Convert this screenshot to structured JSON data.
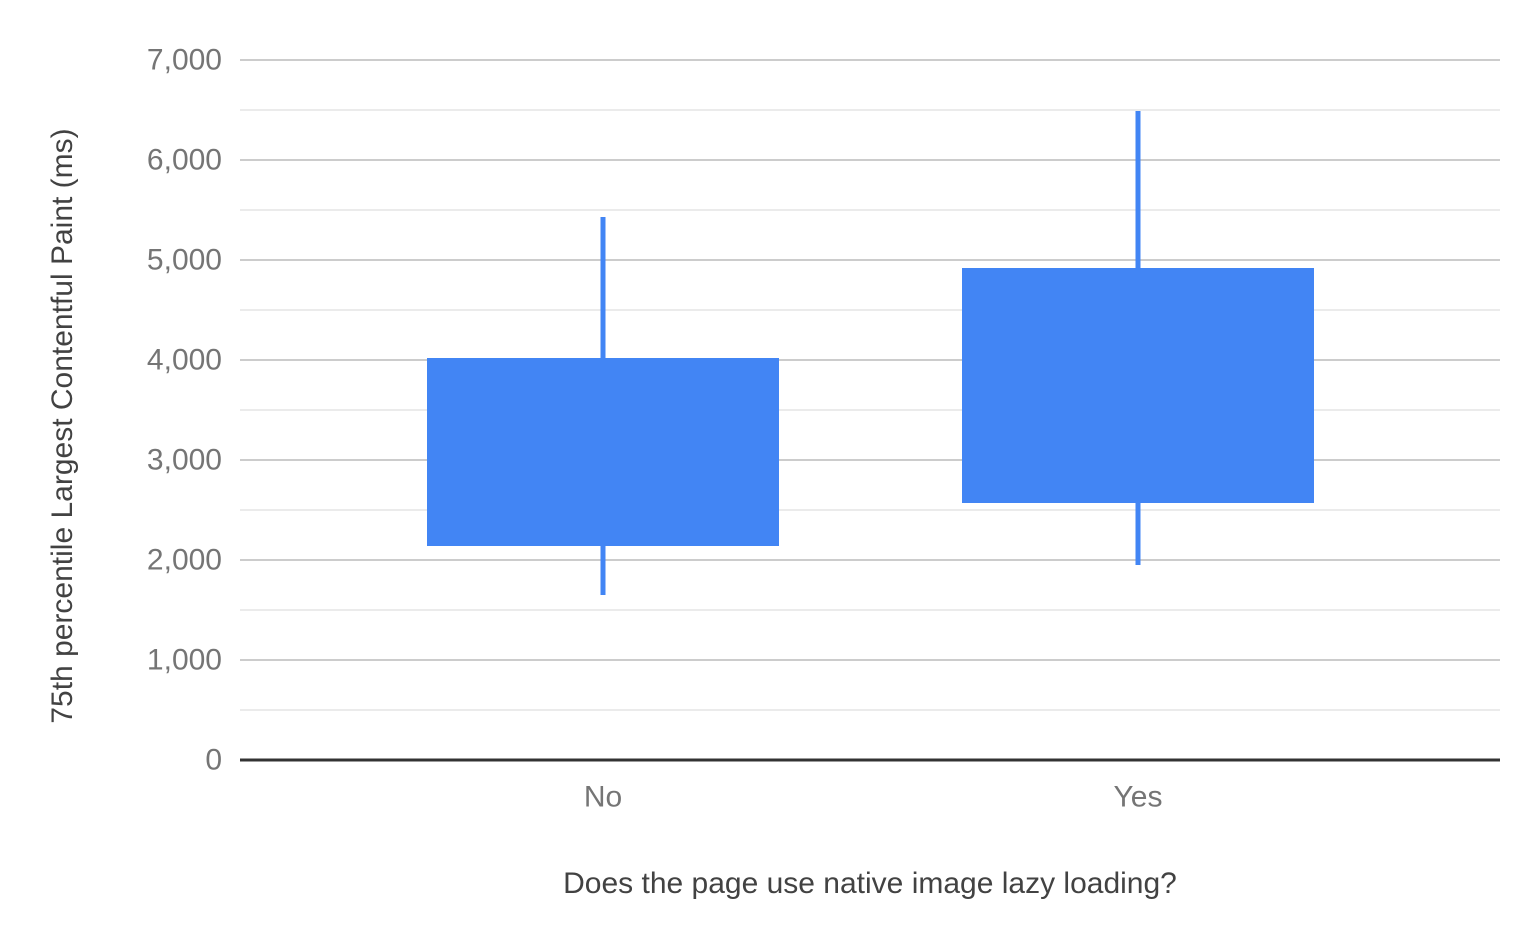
{
  "chart_data": {
    "type": "boxplot",
    "title": "",
    "xlabel": "Does the page use native image lazy loading?",
    "ylabel": "75th percentile Largest Contentful Paint (ms)",
    "categories": [
      "No",
      "Yes"
    ],
    "series": [
      {
        "name": "No",
        "min": 1650,
        "q1": 2140,
        "q3": 4020,
        "max": 5430
      },
      {
        "name": "Yes",
        "min": 1950,
        "q1": 2570,
        "q3": 4920,
        "max": 6490
      }
    ],
    "ylim": [
      0,
      7000
    ],
    "y_major_step": 1000,
    "y_minor_step": 500,
    "y_tick_labels": [
      "0",
      "1,000",
      "2,000",
      "3,000",
      "4,000",
      "5,000",
      "6,000",
      "7,000"
    ],
    "grid": true,
    "legend_position": "none",
    "colors": {
      "box": "#4285f4",
      "whisker": "#4285f4",
      "major_gridline": "#cccccc",
      "minor_gridline": "#ebebeb",
      "axis_line": "#333333",
      "tick_label": "#757575",
      "category_label": "#757575",
      "axis_title": "#424242",
      "background": "#ffffff"
    }
  }
}
